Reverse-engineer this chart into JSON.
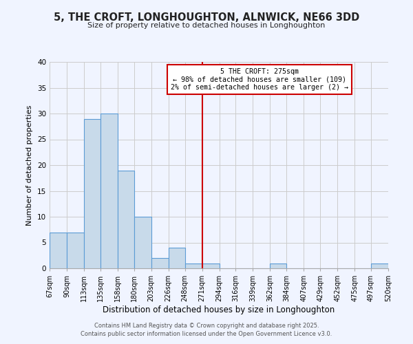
{
  "title": "5, THE CROFT, LONGHOUGHTON, ALNWICK, NE66 3DD",
  "subtitle": "Size of property relative to detached houses in Longhoughton",
  "xlabel": "Distribution of detached houses by size in Longhoughton",
  "ylabel": "Number of detached properties",
  "bar_color": "#c8daea",
  "bar_edge_color": "#5b9bd5",
  "bins": [
    67,
    90,
    113,
    135,
    158,
    180,
    203,
    226,
    248,
    271,
    294,
    316,
    339,
    362,
    384,
    407,
    429,
    452,
    475,
    497,
    520
  ],
  "counts": [
    7,
    7,
    29,
    30,
    19,
    10,
    2,
    4,
    1,
    1,
    0,
    0,
    0,
    1,
    0,
    0,
    0,
    0,
    0,
    1
  ],
  "tick_labels": [
    "67sqm",
    "90sqm",
    "113sqm",
    "135sqm",
    "158sqm",
    "180sqm",
    "203sqm",
    "226sqm",
    "248sqm",
    "271sqm",
    "294sqm",
    "316sqm",
    "339sqm",
    "362sqm",
    "384sqm",
    "407sqm",
    "429sqm",
    "452sqm",
    "475sqm",
    "497sqm",
    "520sqm"
  ],
  "vline_x": 271,
  "vline_color": "#cc0000",
  "annotation_title": "5 THE CROFT: 275sqm",
  "annotation_line1": "← 98% of detached houses are smaller (109)",
  "annotation_line2": "2% of semi-detached houses are larger (2) →",
  "ylim": [
    0,
    40
  ],
  "yticks": [
    0,
    5,
    10,
    15,
    20,
    25,
    30,
    35,
    40
  ],
  "grid_color": "#cccccc",
  "background_color": "#f0f4ff",
  "footer1": "Contains HM Land Registry data © Crown copyright and database right 2025.",
  "footer2": "Contains public sector information licensed under the Open Government Licence v3.0."
}
